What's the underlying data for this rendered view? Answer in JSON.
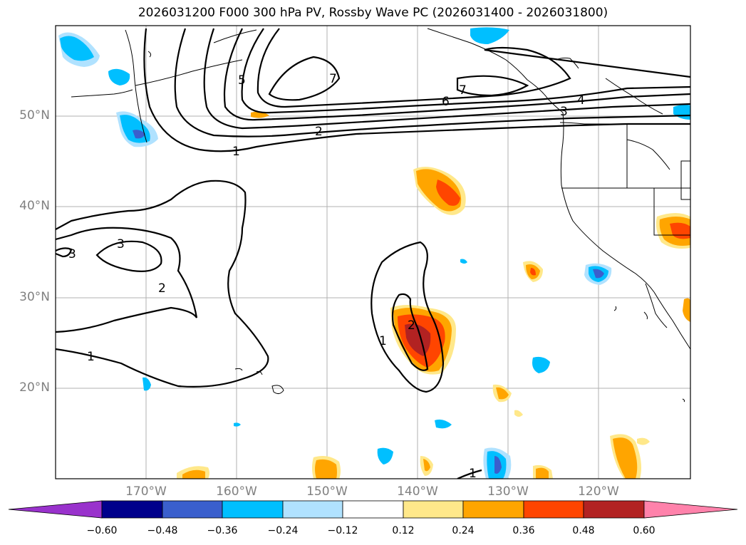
{
  "title": "2026031200 F000 300 hPa PV, Rossby Wave PC (2026031400 - 2026031800)",
  "lon_labels": [
    "170°W",
    "160°W",
    "150°W",
    "140°W",
    "130°W",
    "120°W"
  ],
  "lat_labels": [
    "50°N",
    "40°N",
    "30°N",
    "20°N"
  ],
  "contour_labels": [
    "1",
    "2",
    "3",
    "3",
    "5",
    "7",
    "7",
    "6",
    "4",
    "3",
    "2",
    "1",
    "1",
    "2",
    "1"
  ],
  "colorbar": {
    "ticks": [
      "−0.60",
      "−0.48",
      "−0.36",
      "−0.24",
      "−0.12",
      "0.12",
      "0.24",
      "0.36",
      "0.48",
      "0.60"
    ],
    "colors": [
      "#9932cc",
      "#00008b",
      "#3a5fcd",
      "#00bfff",
      "#b0e2ff",
      "#ffffff",
      "#ffe88a",
      "#ffa500",
      "#ff4500",
      "#b22222",
      "#ff82ab"
    ]
  }
}
